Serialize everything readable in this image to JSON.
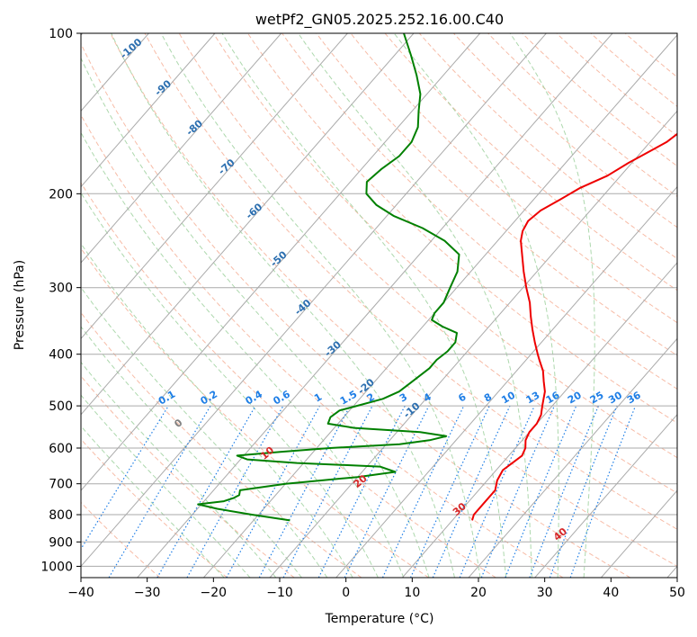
{
  "chart_data": {
    "type": "line",
    "title": "wetPf2_GN05.2025.252.16.00.C40",
    "xlabel": "Temperature (°C)",
    "ylabel": "Pressure (hPa)",
    "xlim": [
      -40,
      50
    ],
    "ylim": [
      1050,
      100
    ],
    "y_scale": "log",
    "grid": true,
    "x_ticks": [
      -40,
      -30,
      -20,
      -10,
      0,
      10,
      20,
      30,
      40,
      50
    ],
    "y_ticks": [
      100,
      200,
      300,
      400,
      500,
      600,
      700,
      800,
      900,
      1000
    ],
    "colors": {
      "temperature": "#ee0000",
      "dewpoint": "#008000",
      "isotherm": "#aaaaaa",
      "dry_adiabat": "#f4a58a",
      "moist_adiabat": "#9fd19f",
      "mixing_ratio": "#1e7ee6",
      "temp_annotation": "#2c6fb0",
      "pos_annotation": "#d62728",
      "zero_annotation": "#808080"
    },
    "series": [
      {
        "key": "temperature",
        "pressure": [
          820,
          800,
          760,
          720,
          690,
          660,
          640,
          620,
          600,
          580,
          560,
          540,
          520,
          500,
          470,
          450,
          430,
          410,
          400,
          380,
          360,
          340,
          320,
          300,
          280,
          260,
          245,
          235,
          225,
          215,
          205,
          195,
          185,
          175,
          165,
          160,
          150,
          140,
          130,
          120,
          110,
          105,
          100
        ],
        "temp": [
          13.0,
          12.5,
          12.5,
          12.5,
          11.5,
          11.0,
          11.5,
          12.0,
          11.5,
          10.5,
          10.0,
          10.0,
          9.5,
          8.5,
          7.0,
          5.5,
          4.0,
          2.0,
          1.0,
          -1.0,
          -3.0,
          -5.0,
          -7.0,
          -9.5,
          -12.0,
          -14.5,
          -16.5,
          -17.5,
          -18.0,
          -17.5,
          -16.0,
          -14.5,
          -12.0,
          -10.5,
          -8.5,
          -7.5,
          -6.5,
          -6.5,
          -6.5,
          -6.5,
          -6.0,
          -6.0,
          -6.5
        ]
      },
      {
        "key": "dewpoint",
        "pressure": [
          820,
          800,
          780,
          765,
          755,
          745,
          735,
          720,
          700,
          680,
          665,
          650,
          640,
          630,
          620,
          610,
          600,
          590,
          580,
          570,
          560,
          550,
          540,
          525,
          510,
          500,
          485,
          470,
          455,
          440,
          425,
          410,
          395,
          380,
          365,
          355,
          345,
          335,
          320,
          300,
          280,
          260,
          245,
          232,
          220,
          210,
          200,
          190,
          180,
          170,
          160,
          150,
          140,
          130,
          120,
          110,
          100
        ],
        "dewp": [
          -14.5,
          -21.0,
          -27.0,
          -30.5,
          -27.0,
          -26.0,
          -25.5,
          -26.0,
          -20.0,
          -10.0,
          -5.0,
          -8.0,
          -21.0,
          -29.0,
          -31.0,
          -25.0,
          -18.0,
          -8.0,
          -4.0,
          -2.0,
          -6.5,
          -17.0,
          -21.5,
          -22.0,
          -21.5,
          -19.5,
          -16.5,
          -15.0,
          -14.5,
          -14.0,
          -13.5,
          -13.5,
          -13.0,
          -13.0,
          -14.0,
          -17.0,
          -19.5,
          -20.0,
          -20.0,
          -21.0,
          -22.0,
          -24.0,
          -28.0,
          -33.0,
          -39.0,
          -43.0,
          -46.0,
          -47.5,
          -47.0,
          -46.0,
          -46.0,
          -47.0,
          -49.0,
          -51.0,
          -54.0,
          -57.5,
          -61.5
        ]
      }
    ],
    "isotherm_annotations": [
      -100,
      -90,
      -80,
      -70,
      -60,
      -50,
      -40,
      -30,
      -20,
      -10
    ],
    "mixing_ratio_labels": [
      "0.1",
      "0.2",
      "0.4",
      "0.6",
      "1",
      "1.5",
      "2",
      "3",
      "4",
      "6",
      "8",
      "10",
      "13",
      "16",
      "20",
      "25",
      "30",
      "36"
    ],
    "mixing_ratio_values": [
      0.1,
      0.2,
      0.4,
      0.6,
      1,
      1.5,
      2,
      3,
      4,
      6,
      8,
      10,
      13,
      16,
      20,
      25,
      30,
      36
    ],
    "dry_adiabat_annotations": [
      0,
      10,
      20,
      30,
      40
    ]
  }
}
